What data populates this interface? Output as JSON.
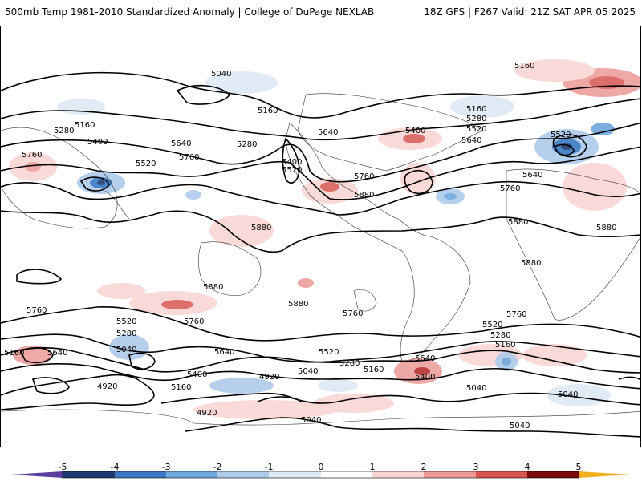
{
  "header": {
    "title": "500mb Temp 1981-2010 Standardized Anomaly | College of DuPage NEXLAB",
    "run_info": "18Z GFS | F267 Valid: 21Z SAT APR 05 2025"
  },
  "contour_labels": [
    "5040",
    "5160",
    "5280",
    "5400",
    "5520",
    "5640",
    "5760",
    "5880",
    "4920"
  ],
  "colorbar": {
    "ticks": [
      "-5",
      "-4",
      "-3",
      "-2",
      "-1",
      "0",
      "1",
      "2",
      "3",
      "4",
      "5"
    ],
    "colors": [
      "#5b3d9e",
      "#1d3a73",
      "#3a78c4",
      "#6ea6dc",
      "#aecbea",
      "#dde9f5",
      "#ffffff",
      "#f8d4d2",
      "#ec9a96",
      "#d85652",
      "#b22424",
      "#7a0b0b",
      "#f0b020"
    ]
  }
}
